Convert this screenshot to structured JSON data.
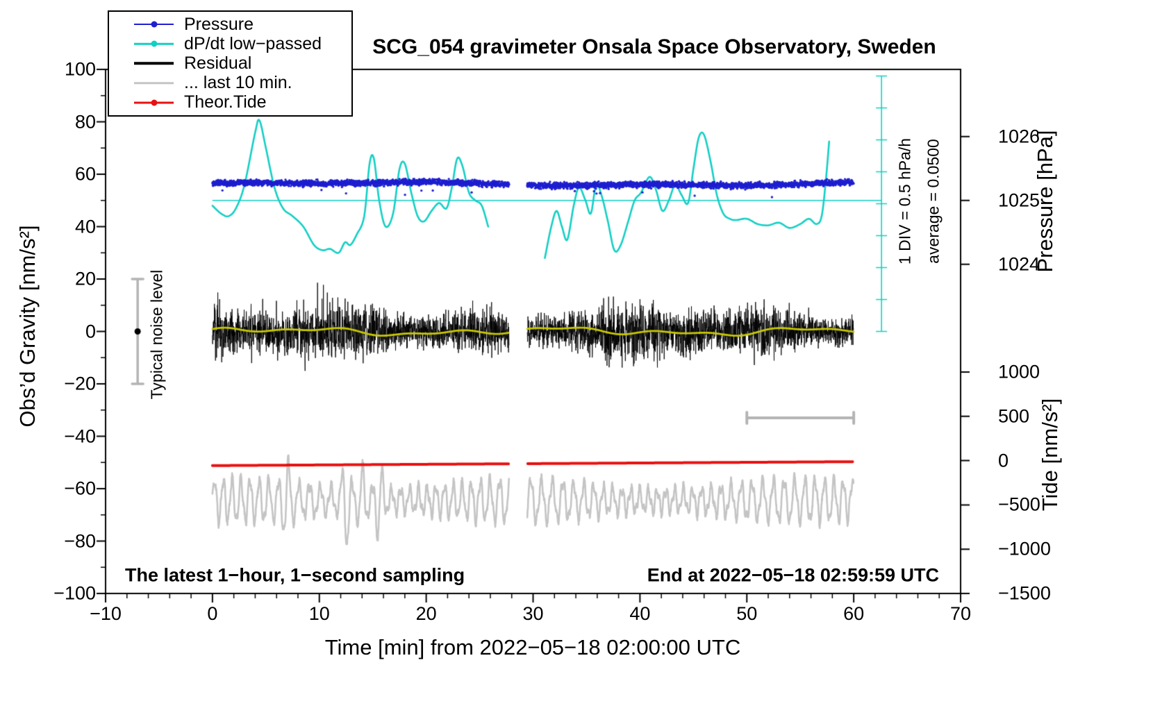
{
  "title": "SCG_054 gravimeter Onsala Space Observatory, Sweden",
  "footer_left": "The latest 1−hour, 1−second sampling",
  "footer_right": "End at 2022−05−18 02:59:59 UTC",
  "annotations": {
    "div_scale": "1 DIV = 0.5 hPa/h",
    "average": "average = 0.0500",
    "noise_level": "Typical noise level"
  },
  "legend": {
    "items": [
      {
        "label": "Pressure",
        "color": "#1f1fd0",
        "line_width": 2,
        "marker": "dot"
      },
      {
        "label": "dP/dt low−passed",
        "color": "#12cfc4",
        "line_width": 2.5,
        "marker": "dot"
      },
      {
        "label": "Residual",
        "color": "#000000",
        "line_width": 3.5,
        "marker": "none"
      },
      {
        "label": "... last 10 min.",
        "color": "#c4c4c4",
        "line_width": 3.5,
        "marker": "none"
      },
      {
        "label": "Theor.Tide",
        "color": "#e81010",
        "line_width": 3,
        "marker": "dot"
      }
    ]
  },
  "chart_data": {
    "type": "line",
    "title": "SCG_054 gravimeter Onsala Space Observatory, Sweden",
    "axes": {
      "x": {
        "label": "Time [min] from 2022−05−18 02:00:00 UTC",
        "min": -10,
        "max": 70,
        "minor_step": 2,
        "ticks": [
          {
            "v": -10,
            "label": "−10"
          },
          {
            "v": 0,
            "label": "0"
          },
          {
            "v": 10,
            "label": "10"
          },
          {
            "v": 20,
            "label": "20"
          },
          {
            "v": 30,
            "label": "30"
          },
          {
            "v": 40,
            "label": "40"
          },
          {
            "v": 50,
            "label": "50"
          },
          {
            "v": 60,
            "label": "60"
          },
          {
            "v": 70,
            "label": "70"
          }
        ]
      },
      "y_left": {
        "label": "Obs’d Gravity [nm/s²]",
        "min": -100,
        "max": 100,
        "minor_step": 10,
        "ticks": [
          {
            "v": 100,
            "label": "100"
          },
          {
            "v": 80,
            "label": "80"
          },
          {
            "v": 60,
            "label": "60"
          },
          {
            "v": 40,
            "label": "40"
          },
          {
            "v": 20,
            "label": "20"
          },
          {
            "v": 0,
            "label": "0"
          },
          {
            "v": -20,
            "label": "−20"
          },
          {
            "v": -40,
            "label": "−40"
          },
          {
            "v": -60,
            "label": "−60"
          },
          {
            "v": -80,
            "label": "−80"
          },
          {
            "v": -100,
            "label": "−100"
          }
        ]
      },
      "y_right_pressure": {
        "label": "Pressure [hPa]",
        "gravity_at_1025": 50,
        "gravity_per_hPa": 24.4,
        "ticks": [
          {
            "v": 1026,
            "label": "1026"
          },
          {
            "v": 1025,
            "label": "1025"
          },
          {
            "v": 1024,
            "label": "1024"
          }
        ]
      },
      "y_right_tide": {
        "label": "Tide [nm/s²]",
        "gravity_at_0": -49.3,
        "gravity_per_500": 16.9,
        "ticks": [
          {
            "v": 1000,
            "label": "1000"
          },
          {
            "v": 500,
            "label": "500"
          },
          {
            "v": 0,
            "label": "0"
          },
          {
            "v": -500,
            "label": "−500"
          },
          {
            "v": -1000,
            "label": "−1000"
          },
          {
            "v": -1500,
            "label": "−1500"
          }
        ]
      }
    },
    "time_span_min": [
      0,
      60
    ],
    "gap_min": [
      27.75,
      29.45
    ],
    "series": [
      {
        "name": "Pressure",
        "color": "#1f1fd0",
        "style": "dots",
        "gravity_center": 56.3,
        "scatter_sd": 0.8,
        "pressure_mean_hPa": 1025.3,
        "sampling": "1 s"
      },
      {
        "name": "dP/dt low−passed",
        "color": "#12cfc4",
        "style": "smooth_line",
        "points_min_gravity": [
          [
            0,
            48
          ],
          [
            0.8,
            45
          ],
          [
            1.5,
            44
          ],
          [
            2.2,
            47
          ],
          [
            3,
            56
          ],
          [
            4,
            76
          ],
          [
            4.4,
            80.5
          ],
          [
            5,
            70
          ],
          [
            5.8,
            55
          ],
          [
            6.6,
            47
          ],
          [
            7.5,
            44
          ],
          [
            8.5,
            40
          ],
          [
            9.5,
            33
          ],
          [
            10.3,
            31
          ],
          [
            11,
            31.5
          ],
          [
            11.8,
            30
          ],
          [
            12.4,
            34
          ],
          [
            12.9,
            33
          ],
          [
            13.5,
            37
          ],
          [
            14.2,
            44
          ],
          [
            14.7,
            64
          ],
          [
            15.1,
            66
          ],
          [
            15.6,
            50
          ],
          [
            16.2,
            40
          ],
          [
            16.9,
            45
          ],
          [
            17.5,
            62
          ],
          [
            18,
            64
          ],
          [
            18.6,
            53
          ],
          [
            19.2,
            44
          ],
          [
            19.8,
            42
          ],
          [
            20.5,
            46
          ],
          [
            21.2,
            49
          ],
          [
            21.9,
            47
          ],
          [
            22.4,
            55
          ],
          [
            22.9,
            66
          ],
          [
            23.4,
            63
          ],
          [
            24,
            53
          ],
          [
            24.6,
            50
          ],
          [
            25.2,
            48
          ],
          [
            25.8,
            40
          ],
          [
            31.1,
            28
          ],
          [
            31.7,
            40
          ],
          [
            32.2,
            46
          ],
          [
            32.7,
            40
          ],
          [
            33.2,
            35
          ],
          [
            33.8,
            48
          ],
          [
            34.3,
            55
          ],
          [
            34.9,
            50
          ],
          [
            35.4,
            45
          ],
          [
            35.9,
            56
          ],
          [
            36.4,
            52
          ],
          [
            37,
            42
          ],
          [
            37.6,
            31
          ],
          [
            38.2,
            33
          ],
          [
            38.9,
            42
          ],
          [
            39.5,
            50
          ],
          [
            40.1,
            53
          ],
          [
            40.9,
            59
          ],
          [
            41.5,
            54
          ],
          [
            42.1,
            46
          ],
          [
            42.7,
            50
          ],
          [
            43.3,
            56
          ],
          [
            43.9,
            52
          ],
          [
            44.5,
            49
          ],
          [
            45,
            62
          ],
          [
            45.5,
            74
          ],
          [
            46,
            75
          ],
          [
            46.6,
            65
          ],
          [
            47.2,
            52
          ],
          [
            47.8,
            45
          ],
          [
            48.4,
            43
          ],
          [
            49,
            42.5
          ],
          [
            50,
            43
          ],
          [
            51,
            41
          ],
          [
            52,
            40.5
          ],
          [
            53,
            41.5
          ],
          [
            54,
            39.5
          ],
          [
            55,
            41
          ],
          [
            55.8,
            43
          ],
          [
            56.5,
            41
          ],
          [
            57,
            44
          ],
          [
            57.4,
            58
          ],
          [
            57.7,
            72.5
          ]
        ]
      },
      {
        "name": "Residual",
        "color": "#000000",
        "style": "noise_line",
        "gravity_center": 0,
        "sd": 4.2,
        "peak": 20,
        "sampling": "1 s"
      },
      {
        "name": "Residual low−passed",
        "color": "#c8c800",
        "style": "smooth_center_line",
        "gravity_center": 0,
        "amplitude": 1.8
      },
      {
        "name": "... last 10 min.",
        "color": "#c4c4c4",
        "style": "oscillation",
        "gravity_center": -64.5,
        "base_amplitude": 6,
        "period_min": 0.9,
        "spike_centers_min": [
          7,
          12.5,
          14,
          15.6
        ],
        "spike_heights": [
          9,
          14,
          10,
          12
        ]
      },
      {
        "name": "Theor.Tide",
        "color": "#e81010",
        "style": "line",
        "points_min_gravity": [
          [
            0,
            -51.2
          ],
          [
            30,
            -50.45
          ],
          [
            60,
            -49.7
          ]
        ]
      }
    ],
    "markers": {
      "noise_bar": {
        "x_min": -7,
        "gravity_center": 0,
        "half_range": 20
      },
      "ref_line_gravity": 50,
      "ref_line_span_min": [
        0,
        62.6
      ],
      "dpdt_scale": {
        "x_min": 62.6,
        "gravity_from": 0,
        "gravity_to": 97.5,
        "divisions": 8
      },
      "length_bar": {
        "x_from": 50,
        "x_to": 60,
        "gravity": -33
      }
    }
  }
}
